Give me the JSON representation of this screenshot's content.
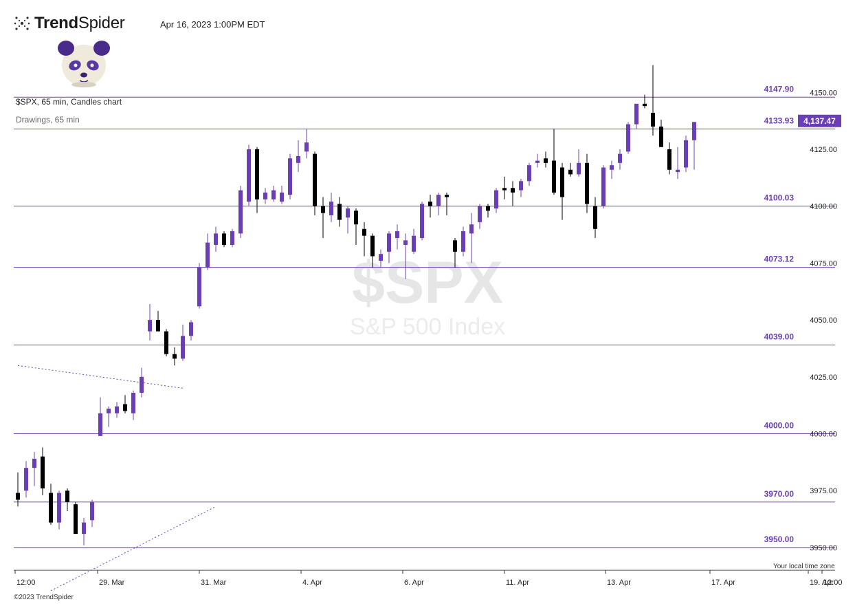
{
  "header": {
    "brand_bold": "Trend",
    "brand_regular": "Spider",
    "timestamp": "Apr 16, 2023 1:00PM EDT"
  },
  "chart_title": "$SPX, 65 min, Candles chart",
  "drawings_label": "Drawings, 65 min",
  "watermark": {
    "symbol": "$SPX",
    "name": "S&P 500 Index"
  },
  "footer": {
    "copyright": "©2023 TrendSpider",
    "timezone_label": "Your local time zone"
  },
  "colors": {
    "up": "#6a3fb5",
    "down": "#000000",
    "level": "#6a3fb5",
    "badge": "#6a3fb5"
  },
  "chart_data": {
    "type": "candlestick",
    "symbol": "$SPX",
    "interval": "65 min",
    "ylim": [
      3940,
      4164
    ],
    "y_ticks": [
      "4150.00",
      "4125.00",
      "4100.00",
      "4075.00",
      "4050.00",
      "4025.00",
      "4000.00",
      "3975.00",
      "3950.00"
    ],
    "x_ticks": [
      "12:00",
      "29. Mar",
      "31. Mar",
      "4. Apr",
      "6. Apr",
      "11. Apr",
      "13. Apr",
      "17. Apr",
      "19. Apr",
      "12:00"
    ],
    "current_price": {
      "value": 4137.47,
      "label": "4,137.47"
    },
    "levels": [
      {
        "value": 4147.9,
        "label": "4147.90"
      },
      {
        "value": 4133.93,
        "label": "4133.93"
      },
      {
        "value": 4100.03,
        "label": "4100.03"
      },
      {
        "value": 4073.12,
        "label": "4073.12"
      },
      {
        "value": 4039.0,
        "label": "4039.00"
      },
      {
        "value": 4000.0,
        "label": "4000.00"
      },
      {
        "value": 3970.0,
        "label": "3970.00"
      },
      {
        "value": 3950.0,
        "label": "3950.00"
      }
    ],
    "trendlines": [
      {
        "x1": 0.0,
        "y1": 4030.0,
        "x2": 20.0,
        "y2": 4020.0
      },
      {
        "x1": 4.0,
        "y1": 3931.0,
        "x2": 24.0,
        "y2": 3968.0
      }
    ],
    "candles": [
      {
        "o": 3974,
        "h": 3983,
        "l": 3968,
        "c": 3971
      },
      {
        "o": 3975,
        "h": 3988,
        "l": 3972,
        "c": 3985
      },
      {
        "o": 3985,
        "h": 3992,
        "l": 3977,
        "c": 3989
      },
      {
        "o": 3990,
        "h": 3994,
        "l": 3973,
        "c": 3976
      },
      {
        "o": 3974,
        "h": 3978,
        "l": 3960,
        "c": 3961
      },
      {
        "o": 3961,
        "h": 3975,
        "l": 3958,
        "c": 3974
      },
      {
        "o": 3975,
        "h": 3976,
        "l": 3966,
        "c": 3970
      },
      {
        "o": 3969,
        "h": 3970,
        "l": 3956,
        "c": 3956
      },
      {
        "o": 3956,
        "h": 3963,
        "l": 3951,
        "c": 3961
      },
      {
        "o": 3962,
        "h": 3971,
        "l": 3959,
        "c": 3970
      },
      {
        "o": 3999,
        "h": 4016,
        "l": 3999,
        "c": 4009
      },
      {
        "o": 4009,
        "h": 4012,
        "l": 4003,
        "c": 4011
      },
      {
        "o": 4009,
        "h": 4014,
        "l": 4007,
        "c": 4012
      },
      {
        "o": 4013,
        "h": 4017,
        "l": 4009,
        "c": 4010
      },
      {
        "o": 4009,
        "h": 4019,
        "l": 4006,
        "c": 4018
      },
      {
        "o": 4018,
        "h": 4029,
        "l": 4016,
        "c": 4025
      },
      {
        "o": 4045,
        "h": 4057,
        "l": 4041,
        "c": 4050
      },
      {
        "o": 4050,
        "h": 4054,
        "l": 4045,
        "c": 4045
      },
      {
        "o": 4045,
        "h": 4046,
        "l": 4034,
        "c": 4035
      },
      {
        "o": 4035,
        "h": 4038,
        "l": 4030,
        "c": 4033
      },
      {
        "o": 4033,
        "h": 4048,
        "l": 4032,
        "c": 4043
      },
      {
        "o": 4043,
        "h": 4050,
        "l": 4041,
        "c": 4049
      },
      {
        "o": 4056,
        "h": 4075,
        "l": 4055,
        "c": 4073
      },
      {
        "o": 4073,
        "h": 4088,
        "l": 4072,
        "c": 4084
      },
      {
        "o": 4083,
        "h": 4091,
        "l": 4080,
        "c": 4088
      },
      {
        "o": 4088,
        "h": 4089,
        "l": 4082,
        "c": 4083
      },
      {
        "o": 4083,
        "h": 4090,
        "l": 4082,
        "c": 4089
      },
      {
        "o": 4088,
        "h": 4109,
        "l": 4086,
        "c": 4107
      },
      {
        "o": 4102,
        "h": 4127,
        "l": 4100,
        "c": 4125
      },
      {
        "o": 4125,
        "h": 4126,
        "l": 4097,
        "c": 4103
      },
      {
        "o": 4103,
        "h": 4108,
        "l": 4101,
        "c": 4106
      },
      {
        "o": 4103,
        "h": 4109,
        "l": 4102,
        "c": 4107
      },
      {
        "o": 4102,
        "h": 4109,
        "l": 4101,
        "c": 4106
      },
      {
        "o": 4105,
        "h": 4123,
        "l": 4103,
        "c": 4121
      },
      {
        "o": 4119,
        "h": 4129,
        "l": 4115,
        "c": 4122
      },
      {
        "o": 4124,
        "h": 4134,
        "l": 4121,
        "c": 4128
      },
      {
        "o": 4123,
        "h": 4124,
        "l": 4096,
        "c": 4100
      },
      {
        "o": 4100,
        "h": 4104,
        "l": 4086,
        "c": 4097
      },
      {
        "o": 4096,
        "h": 4106,
        "l": 4093,
        "c": 4102
      },
      {
        "o": 4101,
        "h": 4104,
        "l": 4091,
        "c": 4094
      },
      {
        "o": 4095,
        "h": 4100,
        "l": 4088,
        "c": 4099
      },
      {
        "o": 4098,
        "h": 4099,
        "l": 4083,
        "c": 4092
      },
      {
        "o": 4090,
        "h": 4093,
        "l": 4078,
        "c": 4087
      },
      {
        "o": 4087,
        "h": 4088,
        "l": 4073,
        "c": 4078
      },
      {
        "o": 4076,
        "h": 4081,
        "l": 4073,
        "c": 4079
      },
      {
        "o": 4080,
        "h": 4089,
        "l": 4075,
        "c": 4088
      },
      {
        "o": 4086,
        "h": 4092,
        "l": 4081,
        "c": 4089
      },
      {
        "o": 4083,
        "h": 4088,
        "l": 4068,
        "c": 4085
      },
      {
        "o": 4080,
        "h": 4090,
        "l": 4079,
        "c": 4087
      },
      {
        "o": 4086,
        "h": 4102,
        "l": 4085,
        "c": 4101
      },
      {
        "o": 4102,
        "h": 4105,
        "l": 4095,
        "c": 4100
      },
      {
        "o": 4100,
        "h": 4106,
        "l": 4096,
        "c": 4105
      },
      {
        "o": 4105,
        "h": 4106,
        "l": 4096,
        "c": 4104
      },
      {
        "o": 4085,
        "h": 4086,
        "l": 4073,
        "c": 4080
      },
      {
        "o": 4080,
        "h": 4091,
        "l": 4078,
        "c": 4089
      },
      {
        "o": 4088,
        "h": 4097,
        "l": 4075,
        "c": 4092
      },
      {
        "o": 4093,
        "h": 4101,
        "l": 4090,
        "c": 4100
      },
      {
        "o": 4100,
        "h": 4101,
        "l": 4095,
        "c": 4098
      },
      {
        "o": 4099,
        "h": 4108,
        "l": 4097,
        "c": 4107
      },
      {
        "o": 4108,
        "h": 4113,
        "l": 4103,
        "c": 4107
      },
      {
        "o": 4108,
        "h": 4111,
        "l": 4100,
        "c": 4106
      },
      {
        "o": 4107,
        "h": 4112,
        "l": 4104,
        "c": 4111
      },
      {
        "o": 4111,
        "h": 4119,
        "l": 4109,
        "c": 4118
      },
      {
        "o": 4119,
        "h": 4123,
        "l": 4117,
        "c": 4120
      },
      {
        "o": 4121,
        "h": 4124,
        "l": 4117,
        "c": 4119
      },
      {
        "o": 4120,
        "h": 4134,
        "l": 4105,
        "c": 4106
      },
      {
        "o": 4117,
        "h": 4119,
        "l": 4094,
        "c": 4104
      },
      {
        "o": 4116,
        "h": 4119,
        "l": 4113,
        "c": 4114
      },
      {
        "o": 4114,
        "h": 4125,
        "l": 4113,
        "c": 4119
      },
      {
        "o": 4119,
        "h": 4123,
        "l": 4097,
        "c": 4101
      },
      {
        "o": 4100,
        "h": 4104,
        "l": 4086,
        "c": 4090
      },
      {
        "o": 4100,
        "h": 4118,
        "l": 4099,
        "c": 4117
      },
      {
        "o": 4116,
        "h": 4120,
        "l": 4112,
        "c": 4118
      },
      {
        "o": 4119,
        "h": 4125,
        "l": 4116,
        "c": 4123
      },
      {
        "o": 4124,
        "h": 4137,
        "l": 4123,
        "c": 4136
      },
      {
        "o": 4136,
        "h": 4145,
        "l": 4134,
        "c": 4145
      },
      {
        "o": 4145,
        "h": 4149,
        "l": 4143,
        "c": 4144
      },
      {
        "o": 4141,
        "h": 4162,
        "l": 4131,
        "c": 4135
      },
      {
        "o": 4135,
        "h": 4138,
        "l": 4126,
        "c": 4126
      },
      {
        "o": 4125,
        "h": 4128,
        "l": 4114,
        "c": 4116
      },
      {
        "o": 4115,
        "h": 4126,
        "l": 4112,
        "c": 4116
      },
      {
        "o": 4117,
        "h": 4131,
        "l": 4115,
        "c": 4129
      },
      {
        "o": 4129,
        "h": 4137,
        "l": 4116,
        "c": 4137
      }
    ]
  }
}
